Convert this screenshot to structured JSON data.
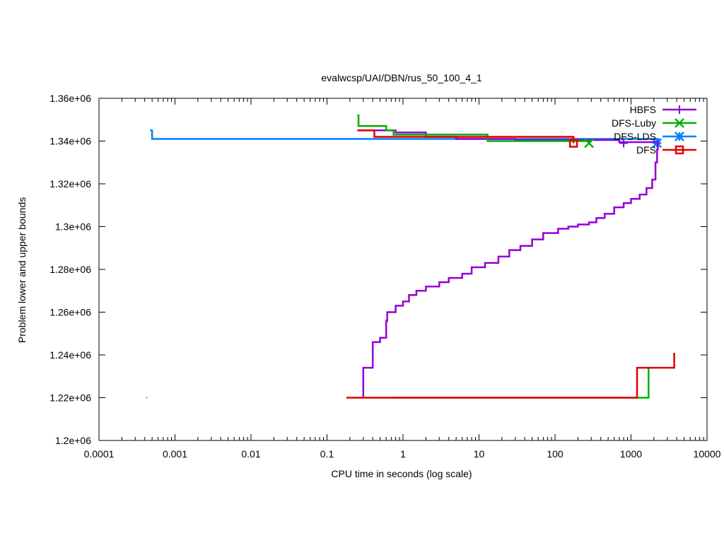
{
  "chart_data": {
    "type": "line",
    "title": "evalwcsp/UAI/DBN/rus_50_100_4_1",
    "xlabel": "CPU time in seconds (log scale)",
    "ylabel": "Problem lower and upper bounds",
    "x_scale": "log",
    "xlim": [
      0.0001,
      10000
    ],
    "ylim": [
      1200000,
      1360000
    ],
    "grid": false,
    "legend_position": "top-right",
    "x_ticks": [
      {
        "value": 0.0001,
        "label": "0.0001"
      },
      {
        "value": 0.001,
        "label": "0.001"
      },
      {
        "value": 0.01,
        "label": "0.01"
      },
      {
        "value": 0.1,
        "label": "0.1"
      },
      {
        "value": 1,
        "label": "1"
      },
      {
        "value": 10,
        "label": "10"
      },
      {
        "value": 100,
        "label": "100"
      },
      {
        "value": 1000,
        "label": "1000"
      },
      {
        "value": 10000,
        "label": "10000"
      }
    ],
    "y_ticks": [
      {
        "value": 1200000,
        "label": "1.2e+06"
      },
      {
        "value": 1220000,
        "label": "1.22e+06"
      },
      {
        "value": 1240000,
        "label": "1.24e+06"
      },
      {
        "value": 1260000,
        "label": "1.26e+06"
      },
      {
        "value": 1280000,
        "label": "1.28e+06"
      },
      {
        "value": 1300000,
        "label": "1.3e+06"
      },
      {
        "value": 1320000,
        "label": "1.32e+06"
      },
      {
        "value": 1340000,
        "label": "1.34e+06"
      },
      {
        "value": 1360000,
        "label": "1.36e+06"
      }
    ],
    "series": [
      {
        "name": "HBFS",
        "color": "#9400d3",
        "marker": "plus",
        "upper": [
          [
            0.26,
            1345000
          ],
          [
            0.8,
            1344000
          ],
          [
            2.0,
            1342000
          ],
          [
            5.0,
            1341000
          ],
          [
            30,
            1340500
          ],
          [
            700,
            1339500
          ],
          [
            2300,
            1339000
          ]
        ],
        "lower": [
          [
            0.3,
            1220000
          ],
          [
            0.3,
            1234000
          ],
          [
            0.4,
            1246000
          ],
          [
            0.5,
            1248000
          ],
          [
            0.6,
            1256000
          ],
          [
            0.62,
            1260000
          ],
          [
            0.8,
            1263000
          ],
          [
            1.0,
            1265000
          ],
          [
            1.2,
            1268000
          ],
          [
            1.5,
            1270000
          ],
          [
            2.0,
            1272000
          ],
          [
            3.0,
            1274000
          ],
          [
            4.0,
            1276000
          ],
          [
            6.0,
            1278000
          ],
          [
            8.0,
            1281000
          ],
          [
            12.0,
            1283000
          ],
          [
            18.0,
            1286000
          ],
          [
            25.0,
            1289000
          ],
          [
            35.0,
            1291000
          ],
          [
            50.0,
            1294000
          ],
          [
            70.0,
            1297000
          ],
          [
            110.0,
            1299000
          ],
          [
            150.0,
            1300000
          ],
          [
            200.0,
            1301000
          ],
          [
            280.0,
            1302000
          ],
          [
            350.0,
            1304000
          ],
          [
            450.0,
            1306000
          ],
          [
            600.0,
            1309000
          ],
          [
            800.0,
            1311000
          ],
          [
            1000.0,
            1313000
          ],
          [
            1300.0,
            1315000
          ],
          [
            1600.0,
            1318000
          ],
          [
            1900.0,
            1322000
          ],
          [
            2100.0,
            1330000
          ],
          [
            2200.0,
            1336000
          ],
          [
            2250.0,
            1339000
          ]
        ],
        "end_marker": [
          800,
          1339000
        ]
      },
      {
        "name": "DFS-Luby",
        "color": "#00b000",
        "marker": "x",
        "upper": [
          [
            0.25,
            1352000
          ],
          [
            0.26,
            1347000
          ],
          [
            0.6,
            1345000
          ],
          [
            0.75,
            1343000
          ],
          [
            13.0,
            1340000
          ],
          [
            280,
            1339200
          ]
        ],
        "lower": [
          [
            0.7,
            1220000
          ],
          [
            1700,
            1220000
          ],
          [
            1700,
            1234000
          ]
        ],
        "end_marker": [
          280,
          1339000
        ]
      },
      {
        "name": "DFS-LDS",
        "color": "#0080ff",
        "marker": "star",
        "upper": [
          [
            0.00047,
            1345000
          ],
          [
            0.0005,
            1341000
          ],
          [
            2300,
            1339000
          ]
        ],
        "lower": [
          [
            0.00042,
            1220000
          ],
          [
            0.00043,
            1220000
          ]
        ],
        "end_marker": [
          2200,
          1339000
        ]
      },
      {
        "name": "DFS",
        "color": "#e00000",
        "marker": "square",
        "upper": [
          [
            0.25,
            1345000
          ],
          [
            0.42,
            1342000
          ],
          [
            13.0,
            1342000
          ],
          [
            175,
            1339000
          ]
        ],
        "lower": [
          [
            0.18,
            1220000
          ],
          [
            1200,
            1220000
          ],
          [
            1200,
            1234000
          ],
          [
            3700,
            1234000
          ],
          [
            3700,
            1241000
          ]
        ],
        "end_marker": [
          175,
          1339000
        ]
      }
    ]
  }
}
